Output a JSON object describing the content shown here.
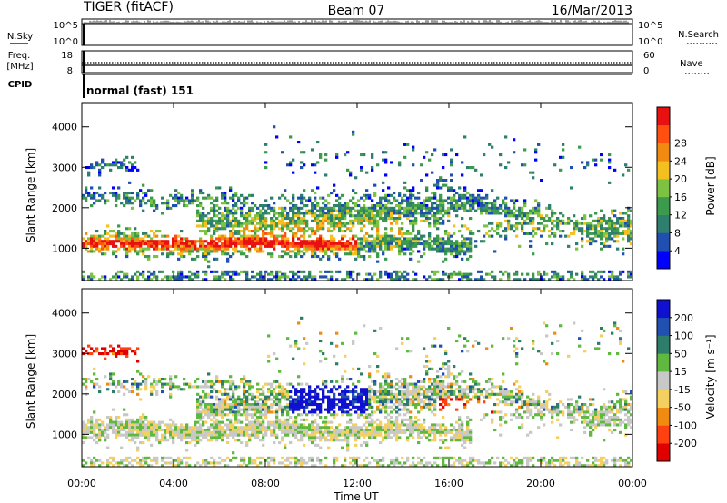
{
  "header": {
    "radar": "TIGER (fitACF)",
    "beam": "Beam 07",
    "date": "16/Mar/2013"
  },
  "noise_panel": {
    "left_label": "N.Sky",
    "right_label": "N.Search",
    "left_ticks": [
      "10^5",
      "10^0"
    ],
    "right_ticks": [
      "10^5",
      "10^0"
    ]
  },
  "freq_panel": {
    "left_label_1": "Freq.",
    "left_label_2": "[MHz]",
    "right_label": "Nave",
    "left_ticks": [
      "18",
      "8"
    ],
    "right_ticks": [
      "60",
      "0"
    ]
  },
  "cpid_panel": {
    "label": "CPID",
    "program": "normal (fast) 151"
  },
  "chart_data": [
    {
      "type": "heatmap",
      "name": "power",
      "ylabel": "Slant Range [km]",
      "yticks": [
        "1000",
        "2000",
        "3000",
        "4000"
      ],
      "ylim": [
        200,
        4600
      ],
      "xlim": [
        0,
        24
      ],
      "colorbar_label": "Power [dB]",
      "colorbar_ticks": [
        "4",
        "8",
        "12",
        "16",
        "20",
        "24",
        "28"
      ],
      "colorbar_colors": [
        "#0000ff",
        "#1f4fb0",
        "#2f7f6f",
        "#3c9a4c",
        "#7dc242",
        "#f4c020",
        "#f08a10",
        "#ff5010",
        "#e81010"
      ]
    },
    {
      "type": "heatmap",
      "name": "velocity",
      "ylabel": "Slant Range [km]",
      "yticks": [
        "1000",
        "2000",
        "3000",
        "4000"
      ],
      "ylim": [
        200,
        4600
      ],
      "xlim": [
        0,
        24
      ],
      "xlabel": "Time UT",
      "xticks": [
        "00:00",
        "04:00",
        "08:00",
        "12:00",
        "16:00",
        "20:00",
        "00:00"
      ],
      "colorbar_label": "Velocity [m s⁻¹]",
      "colorbar_ticks": [
        "200",
        "100",
        "50",
        "15",
        "-15",
        "-50",
        "-100",
        "-200"
      ],
      "colorbar_colors": [
        "#1010d0",
        "#2050b0",
        "#2e7d6b",
        "#5fb83f",
        "#c8c8c8",
        "#f4d060",
        "#f08a10",
        "#ff4010",
        "#e00000"
      ]
    }
  ]
}
